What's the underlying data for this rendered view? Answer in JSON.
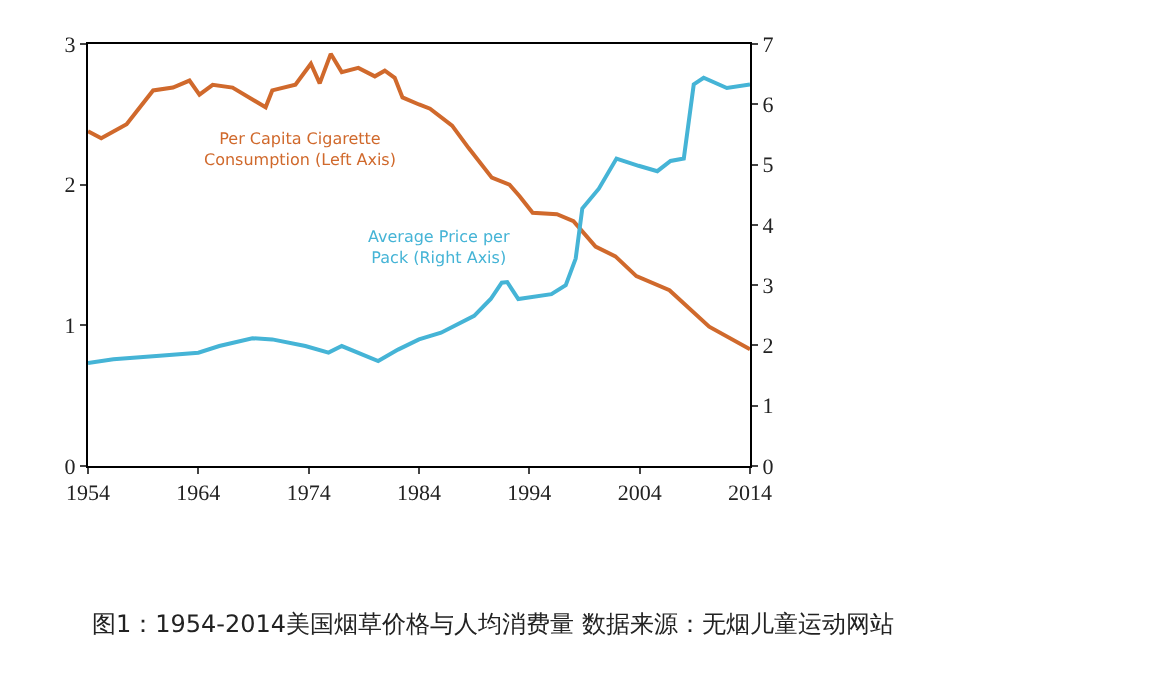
{
  "chart_data": {
    "type": "line",
    "series": [
      {
        "name": "Per Capita Cigarette\nConsumption (Left Axis)",
        "color": "#d0692c",
        "x": [
          1954,
          1955.2,
          1957.5,
          1959.9,
          1961.7,
          1963.2,
          1964.1,
          1965.3,
          1967.1,
          1970.1,
          1970.7,
          1972.8,
          1974.2,
          1975,
          1976,
          1977,
          1978.5,
          1980,
          1980.9,
          1981.8,
          1982.5,
          1984,
          1985,
          1987,
          1988.5,
          1990.6,
          1992.2,
          1993.1,
          1994.3,
          1996.5,
          1998,
          2000,
          2001.8,
          2003.7,
          2006.7,
          2010.3,
          2014
        ],
        "values": [
          2.38,
          2.33,
          2.43,
          2.67,
          2.69,
          2.74,
          2.64,
          2.71,
          2.69,
          2.55,
          2.67,
          2.71,
          2.86,
          2.72,
          2.93,
          2.8,
          2.83,
          2.77,
          2.81,
          2.76,
          2.62,
          2.57,
          2.54,
          2.42,
          2.26,
          2.05,
          2.0,
          1.92,
          1.8,
          1.79,
          1.74,
          1.56,
          1.49,
          1.35,
          1.25,
          0.99,
          0.83
        ]
      },
      {
        "name": "Average Price per\nPack (Right Axis)",
        "color": "#45b4d6",
        "axis": "y2",
        "x": [
          1954,
          1956.3,
          1960.5,
          1964,
          1965.9,
          1968.9,
          1970.7,
          1973.7,
          1975.8,
          1977,
          1980.3,
          1982.1,
          1984,
          1986,
          1989,
          1990.5,
          1991.5,
          1992,
          1993,
          1996,
          1997.3,
          1998.2,
          1998.8,
          2000.3,
          2001.9,
          2003.9,
          2005.6,
          2006.8,
          2008,
          2008.9,
          2009.8,
          2011.9,
          2014
        ],
        "values": [
          1.71,
          1.77,
          1.83,
          1.88,
          1.99,
          2.12,
          2.1,
          1.99,
          1.88,
          1.99,
          1.74,
          1.93,
          2.1,
          2.21,
          2.49,
          2.77,
          3.04,
          3.05,
          2.77,
          2.85,
          3.0,
          3.44,
          4.27,
          4.6,
          5.1,
          4.98,
          4.89,
          5.06,
          5.1,
          6.33,
          6.44,
          6.27,
          6.33
        ]
      }
    ],
    "xlim": [
      1954,
      2014
    ],
    "xticks": [
      1954,
      1964,
      1974,
      1984,
      1994,
      2004,
      2014
    ],
    "ylim": [
      0,
      3
    ],
    "yticks": [
      0,
      1,
      2,
      3
    ],
    "y2lim": [
      0,
      7
    ],
    "y2ticks": [
      0,
      1,
      2,
      3,
      4,
      5,
      6,
      7
    ],
    "legend": false,
    "line_style": "solid",
    "marker": "none",
    "annotations": [
      "图1：1954-2014美国烟草价格与人均消费量 数据来源：无烟儿童运动网站"
    ]
  }
}
